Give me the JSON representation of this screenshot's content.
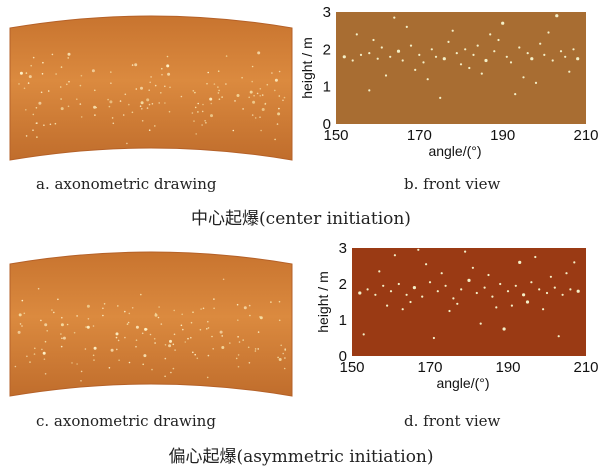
{
  "panels": {
    "a": {
      "caption": "a.  axonometric drawing"
    },
    "b": {
      "caption": "b.  front view"
    },
    "c": {
      "caption": "c.  axonometric drawing"
    },
    "d": {
      "caption": "d.  front view"
    }
  },
  "groups": {
    "center": {
      "title": "中心起爆(center initiation)"
    },
    "asymmetric": {
      "title": "偏心起爆(asymmetric initiation)"
    }
  },
  "colors": {
    "shell_light": "#d9843a",
    "shell_dark": "#b8662a",
    "front_view_b": "#a86d32",
    "front_view_d": "#9a3a14",
    "fragment": "#f4f0c8"
  },
  "chart_data": [
    {
      "panel": "b",
      "type": "scatter",
      "title": "",
      "xlabel": "angle/(°)",
      "ylabel": "height / m",
      "xlim": [
        150,
        210
      ],
      "ylim": [
        0,
        3
      ],
      "xticks": [
        "150",
        "170",
        "190",
        "210"
      ],
      "yticks": [
        "0",
        "1",
        "2",
        "3"
      ],
      "series": [
        {
          "values": [
            [
              152,
              1.8
            ],
            [
              154,
              1.7
            ],
            [
              156,
              1.85
            ],
            [
              158,
              1.9
            ],
            [
              160,
              1.75
            ],
            [
              161,
              2.05
            ],
            [
              163,
              1.8
            ],
            [
              165,
              1.95
            ],
            [
              166,
              1.7
            ],
            [
              168,
              2.1
            ],
            [
              170,
              1.85
            ],
            [
              171,
              1.65
            ],
            [
              173,
              2.0
            ],
            [
              174,
              1.8
            ],
            [
              176,
              1.75
            ],
            [
              177,
              2.2
            ],
            [
              179,
              1.9
            ],
            [
              180,
              1.6
            ],
            [
              181,
              2.0
            ],
            [
              183,
              1.85
            ],
            [
              184,
              2.1
            ],
            [
              186,
              1.7
            ],
            [
              188,
              1.95
            ],
            [
              189,
              2.25
            ],
            [
              191,
              1.8
            ],
            [
              192,
              1.65
            ],
            [
              194,
              2.05
            ],
            [
              196,
              1.9
            ],
            [
              197,
              1.75
            ],
            [
              199,
              2.15
            ],
            [
              200,
              1.85
            ],
            [
              202,
              1.7
            ],
            [
              204,
              1.95
            ],
            [
              205,
              1.8
            ],
            [
              207,
              2.0
            ],
            [
              208,
              1.75
            ],
            [
              155,
              2.4
            ],
            [
              162,
              1.3
            ],
            [
              167,
              2.6
            ],
            [
              172,
              1.2
            ],
            [
              178,
              2.5
            ],
            [
              185,
              1.35
            ],
            [
              190,
              2.7
            ],
            [
              195,
              1.25
            ],
            [
              201,
              2.45
            ],
            [
              206,
              1.4
            ],
            [
              158,
              0.9
            ],
            [
              175,
              0.7
            ],
            [
              193,
              0.8
            ],
            [
              203,
              2.9
            ],
            [
              164,
              2.85
            ],
            [
              198,
              1.1
            ],
            [
              187,
              2.4
            ],
            [
              169,
              1.45
            ],
            [
              182,
              1.5
            ],
            [
              159,
              2.25
            ]
          ]
        }
      ]
    },
    {
      "panel": "d",
      "type": "scatter",
      "title": "",
      "xlabel": "angle/(°)",
      "ylabel": "height / m",
      "xlim": [
        150,
        210
      ],
      "ylim": [
        0,
        3
      ],
      "xticks": [
        "150",
        "170",
        "190",
        "210"
      ],
      "yticks": [
        "0",
        "1",
        "2",
        "3"
      ],
      "series": [
        {
          "values": [
            [
              152,
              1.75
            ],
            [
              154,
              1.85
            ],
            [
              156,
              1.7
            ],
            [
              158,
              1.95
            ],
            [
              160,
              1.8
            ],
            [
              162,
              2.0
            ],
            [
              164,
              1.7
            ],
            [
              166,
              1.9
            ],
            [
              168,
              1.65
            ],
            [
              170,
              2.05
            ],
            [
              172,
              1.8
            ],
            [
              174,
              1.95
            ],
            [
              176,
              1.6
            ],
            [
              178,
              1.85
            ],
            [
              180,
              2.1
            ],
            [
              182,
              1.75
            ],
            [
              184,
              1.9
            ],
            [
              186,
              1.65
            ],
            [
              188,
              2.0
            ],
            [
              190,
              1.8
            ],
            [
              192,
              1.95
            ],
            [
              194,
              1.7
            ],
            [
              196,
              2.05
            ],
            [
              198,
              1.85
            ],
            [
              200,
              1.75
            ],
            [
              202,
              1.9
            ],
            [
              204,
              1.7
            ],
            [
              206,
              1.85
            ],
            [
              208,
              1.8
            ],
            [
              157,
              2.35
            ],
            [
              163,
              1.3
            ],
            [
              169,
              2.55
            ],
            [
              175,
              1.25
            ],
            [
              181,
              2.45
            ],
            [
              187,
              1.35
            ],
            [
              193,
              2.6
            ],
            [
              199,
              1.3
            ],
            [
              205,
              2.3
            ],
            [
              153,
              0.6
            ],
            [
              161,
              2.8
            ],
            [
              171,
              0.5
            ],
            [
              179,
              2.9
            ],
            [
              189,
              0.75
            ],
            [
              197,
              2.75
            ],
            [
              203,
              0.55
            ],
            [
              207,
              2.6
            ],
            [
              165,
              1.5
            ],
            [
              177,
              1.45
            ],
            [
              185,
              2.25
            ],
            [
              195,
              1.5
            ],
            [
              201,
              2.2
            ],
            [
              159,
              1.4
            ],
            [
              173,
              2.3
            ],
            [
              191,
              1.4
            ],
            [
              183,
              0.9
            ],
            [
              167,
              2.95
            ]
          ]
        }
      ]
    }
  ]
}
